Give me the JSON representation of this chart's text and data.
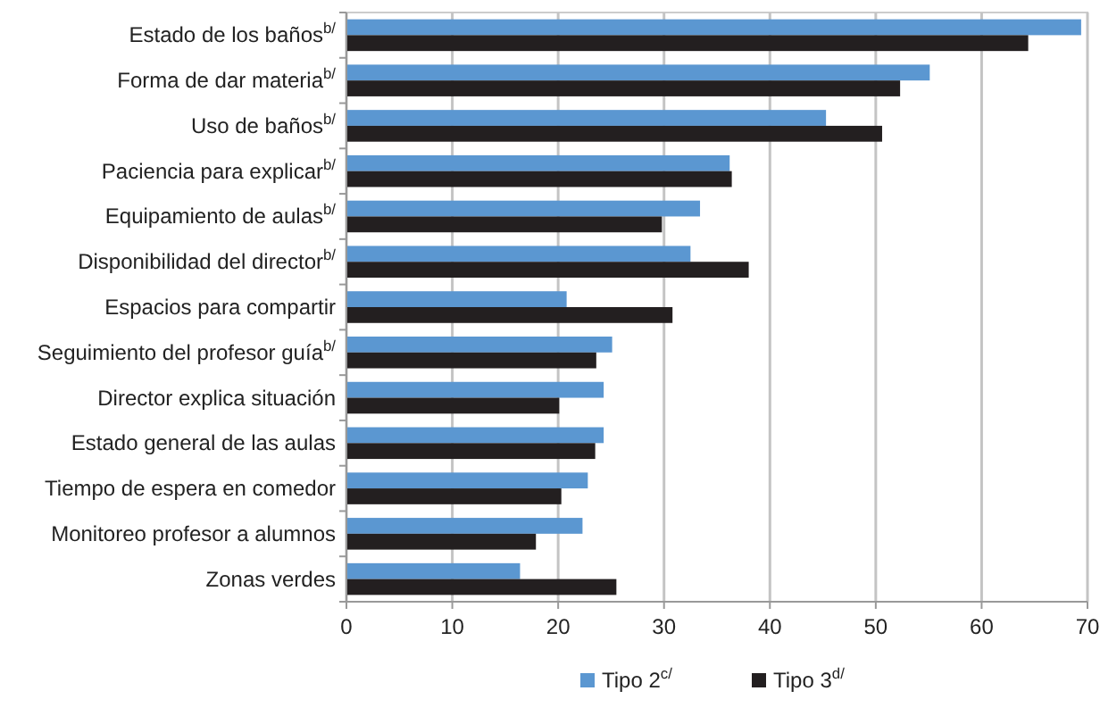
{
  "chart_data": {
    "type": "bar",
    "orientation": "horizontal",
    "categories": [
      "Estado de los baños$^{b/}$",
      "Forma de dar materia$^{b/}$",
      "Uso de baños$^{b/}$",
      "Paciencia para explicar$^{b/}$",
      "Equipamiento de aulas$^{b/}$",
      "Disponibilidad del director$^{b/}$",
      "Espacios para compartir",
      "Seguimiento del profesor guía$^{b/}$",
      "Director explica situación",
      "Estado general de las aulas",
      "Tiempo de espera en comedor",
      "Monitoreo profesor a alumnos",
      "Zonas verdes"
    ],
    "series": [
      {
        "name": "Tipo 2$^{c/}$",
        "color": "#5b97d1",
        "values": [
          69.4,
          55.1,
          45.3,
          36.2,
          33.4,
          32.5,
          20.8,
          25.1,
          24.3,
          24.3,
          22.8,
          22.3,
          16.4
        ]
      },
      {
        "name": "Tipo 3$^{d/}$",
        "color": "#231f20",
        "values": [
          64.4,
          52.3,
          50.6,
          36.4,
          29.8,
          38.0,
          30.8,
          23.6,
          20.1,
          23.5,
          20.3,
          17.9,
          25.5
        ]
      }
    ],
    "xlim": [
      0,
      70
    ],
    "xticks": [
      0,
      10,
      20,
      30,
      40,
      50,
      60,
      70
    ],
    "grid": "x",
    "legend": "bottom"
  }
}
